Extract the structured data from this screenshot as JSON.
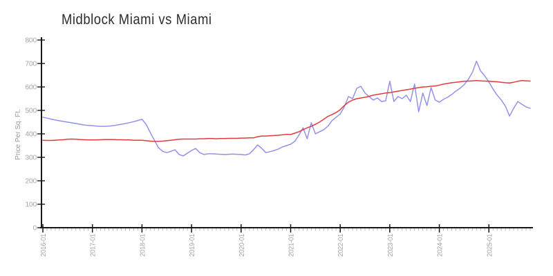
{
  "header": {
    "title": "Midblock Miami vs Miami"
  },
  "colors": {
    "series_midblock": "#9292e8",
    "series_miami": "#e23a3a",
    "axis": "#161616",
    "major_tick": "#161616",
    "minor_tick": "#bcbcbc",
    "tick_label": "#a6a6a6",
    "title_text": "#2d2d2d"
  },
  "chart_data": {
    "type": "line",
    "title": "Midblock Miami vs Miami",
    "xlabel": "",
    "ylabel": "Price Per Sq. Ft.",
    "ylim": [
      0,
      800
    ],
    "ytick_interval": 100,
    "ytick_labels": [
      "0",
      "100",
      "200",
      "300",
      "400",
      "500",
      "600",
      "700",
      "800"
    ],
    "x_interval": "month",
    "x_start": "2016-01",
    "x_end": "2025-11",
    "xtick_labels": [
      "2016-01",
      "2017-01",
      "2018-01",
      "2019-01",
      "2020-01",
      "2021-01",
      "2022-01",
      "2023-01",
      "2024-01",
      "2025-01"
    ],
    "grid": false,
    "legend_position": "none",
    "series": [
      {
        "name": "Midblock Miami",
        "color": "#9292e8",
        "values": [
          471,
          467,
          463,
          459,
          456,
          453,
          450,
          447,
          444,
          441,
          438,
          436,
          435,
          433,
          432,
          432,
          433,
          435,
          438,
          441,
          444,
          448,
          452,
          457,
          462,
          441,
          406,
          373,
          341,
          326,
          320,
          326,
          332,
          312,
          306,
          318,
          329,
          338,
          320,
          312,
          315,
          315,
          314,
          313,
          312,
          313,
          314,
          313,
          312,
          310,
          315,
          332,
          353,
          338,
          320,
          324,
          329,
          335,
          344,
          350,
          356,
          368,
          394,
          426,
          379,
          447,
          400,
          409,
          418,
          432,
          456,
          471,
          485,
          515,
          559,
          550,
          594,
          603,
          574,
          559,
          544,
          553,
          538,
          541,
          624,
          538,
          559,
          550,
          565,
          538,
          612,
          494,
          574,
          521,
          597,
          544,
          535,
          547,
          556,
          568,
          582,
          594,
          609,
          632,
          662,
          710,
          668,
          647,
          621,
          591,
          565,
          544,
          518,
          476,
          509,
          538,
          526,
          515,
          509
        ]
      },
      {
        "name": "Miami",
        "color": "#e23a3a",
        "values": [
          373,
          372,
          372,
          373,
          374,
          375,
          377,
          378,
          377,
          376,
          375,
          374,
          374,
          374,
          375,
          376,
          376,
          376,
          375,
          375,
          374,
          374,
          373,
          373,
          373,
          371,
          369,
          368,
          368,
          369,
          371,
          373,
          375,
          377,
          378,
          378,
          378,
          378,
          379,
          379,
          380,
          380,
          379,
          380,
          380,
          381,
          381,
          381,
          382,
          382,
          383,
          383,
          388,
          391,
          391,
          392,
          393,
          394,
          396,
          398,
          397,
          403,
          409,
          418,
          426,
          432,
          441,
          450,
          462,
          474,
          482,
          491,
          503,
          521,
          535,
          544,
          550,
          553,
          556,
          560,
          565,
          568,
          571,
          574,
          576,
          579,
          582,
          585,
          588,
          591,
          594,
          597,
          600,
          601,
          603,
          604,
          608,
          612,
          615,
          618,
          620,
          622,
          624,
          625,
          626,
          627,
          626,
          625,
          624,
          623,
          622,
          620,
          618,
          617,
          620,
          624,
          627,
          626,
          625
        ]
      }
    ]
  }
}
